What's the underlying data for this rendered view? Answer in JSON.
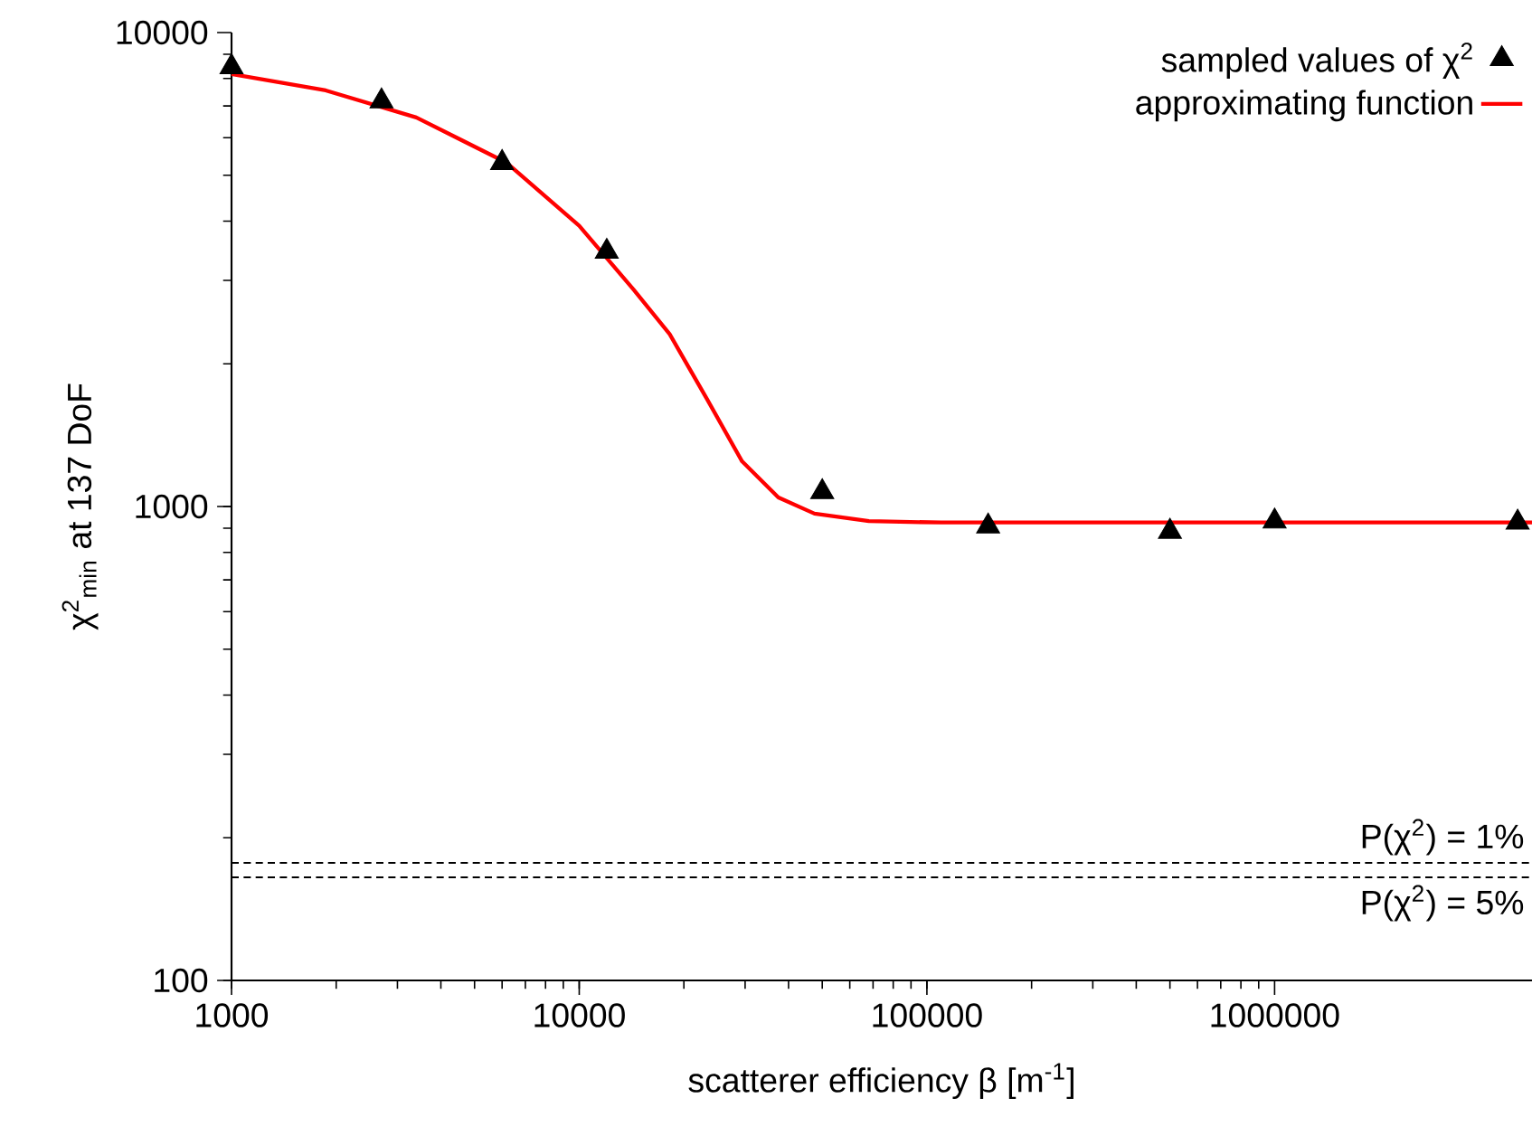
{
  "chart_data": {
    "type": "scatter",
    "xlabel": "scatterer efficiency β [m$^{-1}$]",
    "ylabel": "χ$^{2}$$_{min}$ at 137 DoF",
    "log": "xy",
    "xlim": [
      1000,
      5500000
    ],
    "ylim": [
      100,
      10000
    ],
    "xticks": [
      1000,
      10000,
      100000,
      1000000
    ],
    "yticks": [
      100,
      1000,
      10000
    ],
    "legend": "top right",
    "series": [
      {
        "name": "sampled values of χ$^{2}$",
        "color": "#000000",
        "marker": "triangle",
        "x": [
          1000,
          2700,
          6000,
          12000,
          50000,
          150000,
          500000,
          1000000,
          5000000
        ],
        "values": [
          8460,
          7160,
          5310,
          3450,
          1073,
          908,
          885,
          930,
          925
        ]
      },
      {
        "name": "approximating function",
        "type": "line",
        "color": "#ff0000",
        "marker": "none",
        "line_style": "solid",
        "x": [
          1000,
          1866,
          3400,
          6190,
          10000,
          14330,
          18200,
          23200,
          29400,
          37400,
          47500,
          68100,
          110000,
          5500000
        ],
        "values": [
          8170,
          7550,
          6620,
          5310,
          3910,
          2870,
          2310,
          1695,
          1245,
          1045,
          966,
          931,
          925,
          925
        ]
      }
    ],
    "ref_lines": [
      {
        "axis": "y",
        "value": 177,
        "color": "#000000",
        "line_style": "dashed"
      },
      {
        "axis": "y",
        "value": 165,
        "color": "#000000",
        "line_style": "dashed"
      }
    ],
    "annotations": [
      {
        "text": "P(χ$^{2}$) = 1%",
        "x": 5500000,
        "y": 177
      },
      {
        "text": "P(χ$^{2}$) = 5%",
        "x": 5500000,
        "y": 165
      }
    ]
  }
}
